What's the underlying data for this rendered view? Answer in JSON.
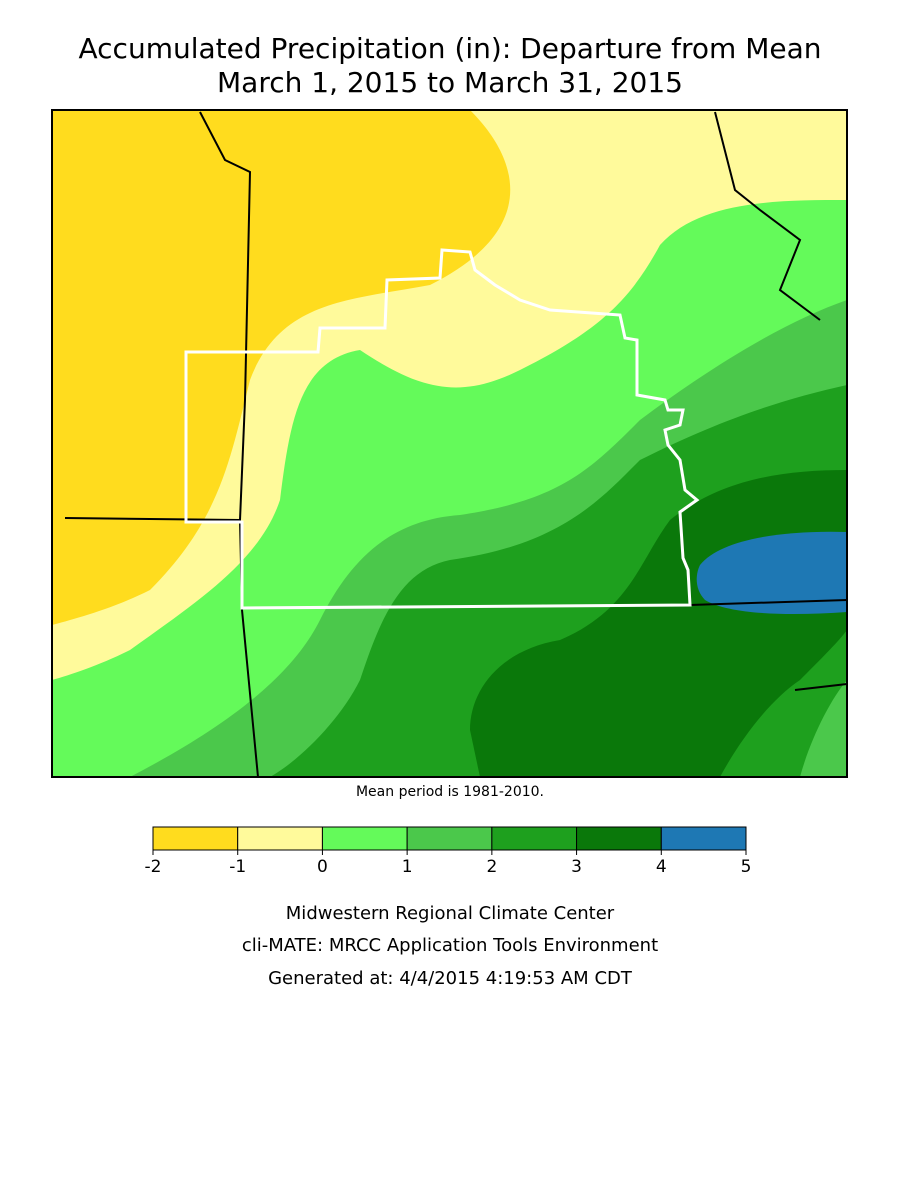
{
  "title": [
    "Accumulated Precipitation (in): Departure from Mean",
    "March 1, 2015 to March 31, 2015"
  ],
  "note": "Mean period is 1981-2010.",
  "legend": {
    "ticks": [
      -2,
      -1,
      0,
      1,
      2,
      3,
      4,
      5
    ],
    "colors": [
      "#ffdc1e",
      "#fffa9b",
      "#64fa5a",
      "#4bc84b",
      "#1ea01e",
      "#0a780a",
      "#1e78b4"
    ]
  },
  "credits": [
    "Midwestern Regional Climate Center",
    "cli-MATE: MRCC Application Tools Environment",
    "Generated at: 4/4/2015 4:19:53 AM CDT"
  ]
}
